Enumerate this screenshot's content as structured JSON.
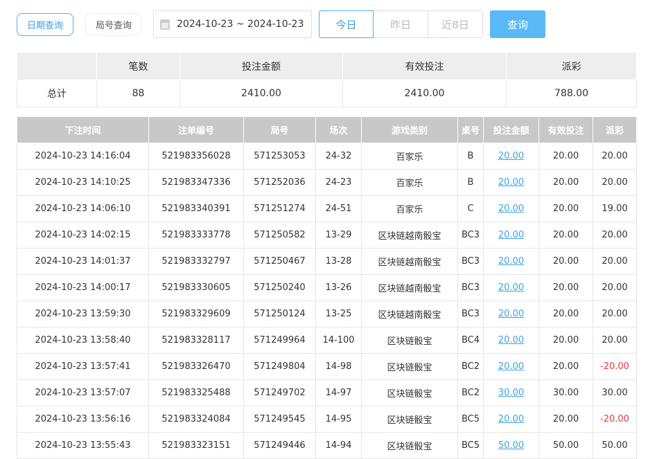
{
  "toolbar": {
    "date_query": "日期查询",
    "round_query": "局号查询",
    "date_range": "2024-10-23 ~ 2024-10-23",
    "today": "今日",
    "yesterday": "昨日",
    "last8": "近8日",
    "query": "查询",
    "calendar_icon": "calendar-icon"
  },
  "colors": {
    "accent": "#5bb8f6",
    "link": "#3aa3e3",
    "negative": "#e4393c"
  },
  "summary": {
    "headers": [
      "",
      "笔数",
      "投注金额",
      "有效投注",
      "派彩"
    ],
    "row": [
      "总计",
      "88",
      "2410.00",
      "2410.00",
      "788.00"
    ]
  },
  "list": {
    "headers": [
      "下注时间",
      "注单编号",
      "局号",
      "场次",
      "游戏类别",
      "桌号",
      "投注金额",
      "有效投注",
      "派彩"
    ],
    "rows": [
      [
        "2024-10-23 14:16:04",
        "521983356028",
        "571253053",
        "24-32",
        "百家乐",
        "B",
        "20.00",
        "20.00",
        "20.00"
      ],
      [
        "2024-10-23 14:10:25",
        "521983347336",
        "571252036",
        "24-23",
        "百家乐",
        "B",
        "20.00",
        "20.00",
        "20.00"
      ],
      [
        "2024-10-23 14:06:10",
        "521983340391",
        "571251274",
        "24-51",
        "百家乐",
        "C",
        "20.00",
        "20.00",
        "19.00"
      ],
      [
        "2024-10-23 14:02:15",
        "521983333778",
        "571250582",
        "13-29",
        "区块链越南骰宝",
        "BC3",
        "20.00",
        "20.00",
        "20.00"
      ],
      [
        "2024-10-23 14:01:37",
        "521983332797",
        "571250467",
        "13-28",
        "区块链越南骰宝",
        "BC3",
        "20.00",
        "20.00",
        "20.00"
      ],
      [
        "2024-10-23 14:00:17",
        "521983330605",
        "571250240",
        "13-26",
        "区块链越南骰宝",
        "BC3",
        "20.00",
        "20.00",
        "20.00"
      ],
      [
        "2024-10-23 13:59:30",
        "521983329609",
        "571250124",
        "13-25",
        "区块链越南骰宝",
        "BC3",
        "20.00",
        "20.00",
        "20.00"
      ],
      [
        "2024-10-23 13:58:40",
        "521983328117",
        "571249964",
        "14-100",
        "区块链骰宝",
        "BC4",
        "20.00",
        "20.00",
        "20.00"
      ],
      [
        "2024-10-23 13:57:41",
        "521983326470",
        "571249804",
        "14-98",
        "区块链骰宝",
        "BC2",
        "20.00",
        "20.00",
        "-20.00"
      ],
      [
        "2024-10-23 13:57:07",
        "521983325488",
        "571249702",
        "14-97",
        "区块链骰宝",
        "BC2",
        "30.00",
        "30.00",
        "30.00"
      ],
      [
        "2024-10-23 13:56:16",
        "521983324084",
        "571249545",
        "14-95",
        "区块链骰宝",
        "BC5",
        "20.00",
        "20.00",
        "-20.00"
      ],
      [
        "2024-10-23 13:55:43",
        "521983323151",
        "571249446",
        "14-94",
        "区块链骰宝",
        "BC5",
        "50.00",
        "50.00",
        "50.00"
      ]
    ]
  }
}
